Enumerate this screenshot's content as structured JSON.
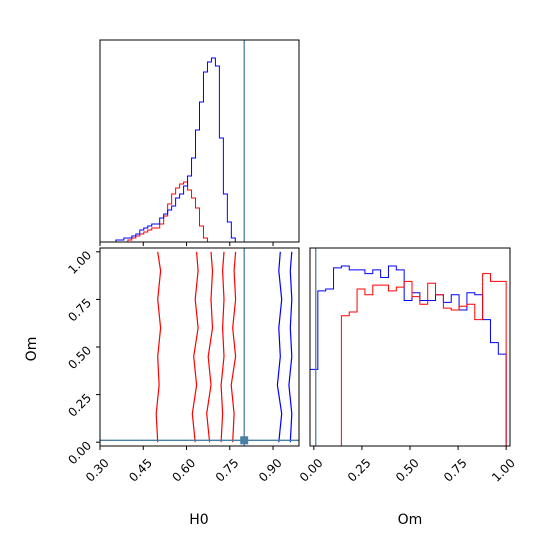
{
  "chart_data": {
    "type": "corner",
    "parameters": [
      "H0",
      "Om"
    ],
    "truth": {
      "H0": 0.8,
      "Om": 0.01
    },
    "truth_color": "#4a7fa5",
    "ranges": {
      "H0": [
        0.3,
        0.99
      ],
      "Om": [
        -0.02,
        1.02
      ]
    },
    "ticks": {
      "H0": {
        "values": [
          0.3,
          0.45,
          0.6,
          0.75,
          0.9
        ],
        "labels": [
          "0.30",
          "0.45",
          "0.60",
          "0.75",
          "0.90"
        ]
      },
      "Om": {
        "values": [
          0.0,
          0.25,
          0.5,
          0.75,
          1.0
        ],
        "labels": [
          "0.00",
          "0.25",
          "0.50",
          "0.75",
          "1.00"
        ]
      }
    },
    "xlabels": {
      "H0": "H0",
      "Om": "Om"
    },
    "ylabels": {
      "Om": "Om"
    },
    "series": [
      {
        "color": "#ff0000",
        "hist_H0": {
          "start": 0.3,
          "step": 0.0138,
          "counts": [
            0,
            0,
            0,
            0,
            0,
            0,
            0,
            1,
            2,
            3,
            4,
            5,
            6,
            7,
            7,
            9,
            13,
            19,
            24,
            27,
            29,
            30,
            26,
            22,
            17,
            8,
            2,
            0,
            0,
            0,
            0,
            0,
            0,
            0,
            0,
            0,
            0,
            0,
            0,
            0,
            0,
            0,
            0,
            0,
            0,
            0,
            0,
            0,
            0,
            0
          ]
        },
        "hist_Om": {
          "start": -0.02,
          "step": 0.0408,
          "counts": [
            0,
            0,
            0,
            0,
            68,
            70,
            82,
            79,
            84,
            84,
            81,
            83,
            86,
            78,
            74,
            85,
            79,
            72,
            71,
            73,
            74,
            66,
            90,
            86,
            86,
            0
          ]
        },
        "contours": [
          [
            [
              0.5,
              0.0
            ],
            [
              0.495,
              0.15
            ],
            [
              0.505,
              0.3
            ],
            [
              0.5,
              0.45
            ],
            [
              0.51,
              0.6
            ],
            [
              0.5,
              0.75
            ],
            [
              0.51,
              0.9
            ],
            [
              0.5,
              1.0
            ]
          ],
          [
            [
              0.63,
              0.0
            ],
            [
              0.62,
              0.15
            ],
            [
              0.635,
              0.3
            ],
            [
              0.625,
              0.45
            ],
            [
              0.64,
              0.6
            ],
            [
              0.63,
              0.75
            ],
            [
              0.64,
              0.9
            ],
            [
              0.635,
              1.0
            ]
          ],
          [
            [
              0.68,
              0.0
            ],
            [
              0.67,
              0.15
            ],
            [
              0.685,
              0.3
            ],
            [
              0.675,
              0.45
            ],
            [
              0.69,
              0.6
            ],
            [
              0.685,
              0.75
            ],
            [
              0.69,
              0.9
            ],
            [
              0.685,
              1.0
            ]
          ],
          [
            [
              0.72,
              0.0
            ],
            [
              0.725,
              0.15
            ],
            [
              0.72,
              0.3
            ],
            [
              0.73,
              0.45
            ],
            [
              0.725,
              0.6
            ],
            [
              0.73,
              0.75
            ],
            [
              0.725,
              0.9
            ],
            [
              0.73,
              1.0
            ]
          ],
          [
            [
              0.76,
              0.0
            ],
            [
              0.765,
              0.15
            ],
            [
              0.755,
              0.3
            ],
            [
              0.77,
              0.45
            ],
            [
              0.76,
              0.6
            ],
            [
              0.77,
              0.75
            ],
            [
              0.765,
              0.9
            ],
            [
              0.77,
              1.0
            ]
          ]
        ]
      },
      {
        "color": "#0000ff",
        "hist_H0": {
          "start": 0.3,
          "step": 0.0138,
          "counts": [
            0,
            0,
            0,
            0,
            1,
            1,
            2,
            2,
            3,
            4,
            6,
            7,
            8,
            9,
            9,
            12,
            14,
            16,
            18,
            22,
            24,
            28,
            33,
            42,
            56,
            70,
            85,
            90,
            92,
            88,
            52,
            24,
            10,
            2,
            0,
            0,
            0,
            0,
            0,
            0,
            0,
            0,
            0,
            0,
            0,
            0,
            0,
            0,
            0,
            0
          ]
        },
        "hist_Om": {
          "start": -0.02,
          "step": 0.0408,
          "counts": [
            40,
            81,
            82,
            93,
            94,
            92,
            92,
            90,
            92,
            88,
            94,
            92,
            76,
            80,
            76,
            76,
            79,
            75,
            79,
            71,
            80,
            79,
            66,
            54,
            48,
            0
          ]
        },
        "contours": [
          [
            [
              0.92,
              0.0
            ],
            [
              0.93,
              0.15
            ],
            [
              0.915,
              0.3
            ],
            [
              0.925,
              0.45
            ],
            [
              0.92,
              0.6
            ],
            [
              0.93,
              0.75
            ],
            [
              0.92,
              0.9
            ],
            [
              0.925,
              1.0
            ]
          ],
          [
            [
              0.96,
              0.0
            ],
            [
              0.965,
              0.15
            ],
            [
              0.955,
              0.3
            ],
            [
              0.965,
              0.45
            ],
            [
              0.96,
              0.6
            ],
            [
              0.965,
              0.75
            ],
            [
              0.96,
              0.9
            ],
            [
              0.965,
              1.0
            ]
          ]
        ]
      }
    ]
  }
}
